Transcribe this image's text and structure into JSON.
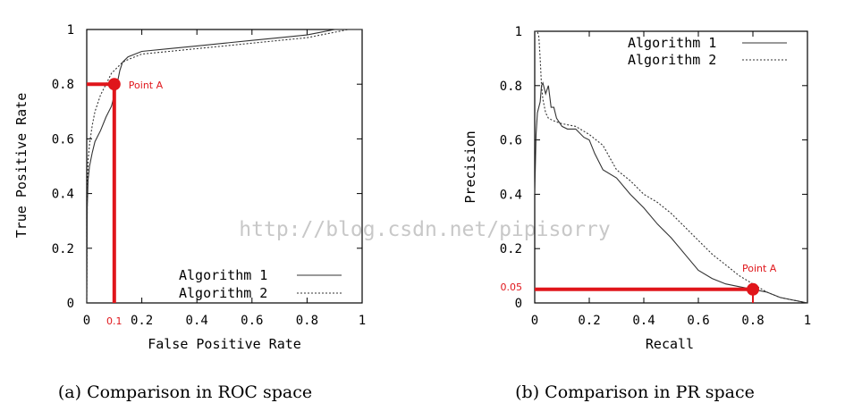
{
  "watermark": "http://blog.csdn.net/pipisorry",
  "colors": {
    "annotation": "#e0161b",
    "axis": "#000000",
    "series": "#333333",
    "watermark": "#c8c8c8"
  },
  "chart_data": [
    {
      "type": "line",
      "caption": "(a) Comparison in ROC space",
      "xlabel": "False Positive Rate",
      "ylabel": "True Positive Rate",
      "xlim": [
        0,
        1
      ],
      "ylim": [
        0,
        1
      ],
      "xticks": [
        "0",
        "0.2",
        "0.4",
        "0.6",
        "0.8",
        "1"
      ],
      "yticks": [
        "0",
        "0.2",
        "0.4",
        "0.6",
        "0.8",
        "1"
      ],
      "grid": false,
      "legend_position": "bottom-right",
      "series": [
        {
          "name": "Algorithm 1",
          "style": "solid",
          "x": [
            0,
            0.002,
            0.005,
            0.01,
            0.02,
            0.03,
            0.05,
            0.07,
            0.09,
            0.1,
            0.11,
            0.12,
            0.13,
            0.15,
            0.2,
            0.3,
            0.4,
            0.5,
            0.6,
            0.7,
            0.8,
            0.85,
            0.9,
            0.95,
            1
          ],
          "y": [
            0,
            0.35,
            0.45,
            0.5,
            0.55,
            0.59,
            0.63,
            0.68,
            0.72,
            0.76,
            0.8,
            0.85,
            0.88,
            0.9,
            0.92,
            0.93,
            0.94,
            0.95,
            0.96,
            0.97,
            0.98,
            0.99,
            1.0,
            1.0,
            1.0
          ]
        },
        {
          "name": "Algorithm 2",
          "style": "dashed",
          "x": [
            0,
            0.002,
            0.005,
            0.01,
            0.02,
            0.03,
            0.05,
            0.07,
            0.09,
            0.11,
            0.13,
            0.15,
            0.2,
            0.3,
            0.4,
            0.5,
            0.6,
            0.7,
            0.8,
            0.85,
            0.9,
            0.95,
            1
          ],
          "y": [
            0,
            0.4,
            0.52,
            0.58,
            0.65,
            0.7,
            0.76,
            0.8,
            0.84,
            0.86,
            0.88,
            0.89,
            0.91,
            0.92,
            0.93,
            0.94,
            0.95,
            0.96,
            0.97,
            0.98,
            0.99,
            1.0,
            1.0
          ]
        }
      ],
      "annotations": [
        {
          "label": "Point A",
          "x": 0.1,
          "y": 0.8,
          "x_tick_label": "0.1"
        }
      ]
    },
    {
      "type": "line",
      "caption": "(b) Comparison in PR space",
      "xlabel": "Recall",
      "ylabel": "Precision",
      "xlim": [
        0,
        1
      ],
      "ylim": [
        0,
        1
      ],
      "xticks": [
        "0",
        "0.2",
        "0.4",
        "0.6",
        "0.8",
        "1"
      ],
      "yticks": [
        "0",
        "0.2",
        "0.4",
        "0.6",
        "0.8",
        "1"
      ],
      "grid": false,
      "legend_position": "top-right",
      "series": [
        {
          "name": "Algorithm 1",
          "style": "solid",
          "x": [
            0,
            0.005,
            0.01,
            0.02,
            0.025,
            0.03,
            0.04,
            0.05,
            0.06,
            0.07,
            0.08,
            0.1,
            0.12,
            0.15,
            0.18,
            0.2,
            0.22,
            0.25,
            0.3,
            0.35,
            0.4,
            0.45,
            0.5,
            0.55,
            0.6,
            0.65,
            0.7,
            0.75,
            0.8,
            0.85,
            0.9,
            0.95,
            1
          ],
          "y": [
            0.4,
            0.62,
            0.7,
            0.74,
            0.8,
            0.81,
            0.77,
            0.8,
            0.72,
            0.72,
            0.68,
            0.65,
            0.64,
            0.64,
            0.61,
            0.6,
            0.55,
            0.49,
            0.46,
            0.4,
            0.35,
            0.29,
            0.24,
            0.18,
            0.12,
            0.09,
            0.07,
            0.06,
            0.05,
            0.04,
            0.02,
            0.01,
            0.0
          ]
        },
        {
          "name": "Algorithm 2",
          "style": "dashed",
          "x": [
            0,
            0.005,
            0.01,
            0.015,
            0.02,
            0.025,
            0.03,
            0.04,
            0.05,
            0.07,
            0.1,
            0.15,
            0.2,
            0.25,
            0.3,
            0.35,
            0.4,
            0.45,
            0.5,
            0.55,
            0.6,
            0.65,
            0.7,
            0.75,
            0.8,
            0.85,
            0.9,
            0.95,
            1
          ],
          "y": [
            1.0,
            1.0,
            1.0,
            0.98,
            0.9,
            0.8,
            0.75,
            0.7,
            0.68,
            0.67,
            0.66,
            0.65,
            0.62,
            0.58,
            0.49,
            0.45,
            0.4,
            0.37,
            0.33,
            0.28,
            0.23,
            0.18,
            0.14,
            0.1,
            0.07,
            0.04,
            0.02,
            0.01,
            0.0
          ]
        }
      ],
      "annotations": [
        {
          "label": "Point A",
          "x": 0.8,
          "y": 0.05,
          "y_tick_label": "0.05"
        }
      ]
    }
  ]
}
